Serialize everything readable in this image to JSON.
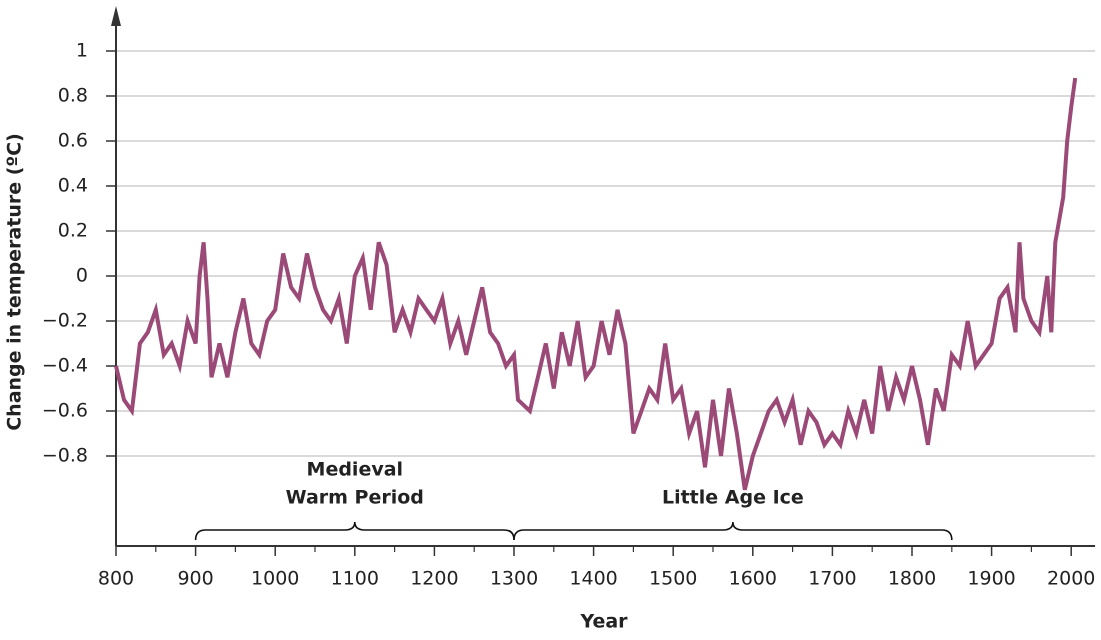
{
  "chart_data": {
    "type": "line",
    "x_label": "Year",
    "y_label": "Change in temperature (ºC)",
    "xlim": [
      800,
      2030
    ],
    "ylim": [
      -1.2,
      1.2
    ],
    "xticks": [
      800,
      900,
      1000,
      1100,
      1200,
      1300,
      1400,
      1500,
      1600,
      1700,
      1800,
      1900,
      2000
    ],
    "xminorticks": [
      850,
      950,
      1050,
      1150,
      1250,
      1350,
      1450,
      1550,
      1650,
      1750,
      1850,
      1950
    ],
    "yticks": [
      {
        "value": -0.8,
        "label": "−0.8"
      },
      {
        "value": -0.6,
        "label": "−0.6"
      },
      {
        "value": -0.4,
        "label": "−0.4"
      },
      {
        "value": -0.2,
        "label": "−0.2"
      },
      0,
      0.2,
      0.4,
      0.6,
      0.8,
      1
    ],
    "grid": true,
    "color": "#9b4a78",
    "x": [
      800,
      810,
      820,
      830,
      840,
      850,
      860,
      870,
      880,
      890,
      900,
      905,
      910,
      915,
      920,
      930,
      940,
      950,
      960,
      970,
      980,
      990,
      1000,
      1010,
      1020,
      1030,
      1040,
      1050,
      1060,
      1070,
      1080,
      1090,
      1100,
      1110,
      1120,
      1130,
      1140,
      1150,
      1160,
      1170,
      1180,
      1190,
      1200,
      1210,
      1220,
      1230,
      1240,
      1250,
      1260,
      1270,
      1280,
      1290,
      1300,
      1305,
      1320,
      1330,
      1340,
      1350,
      1360,
      1370,
      1380,
      1390,
      1400,
      1410,
      1420,
      1430,
      1440,
      1450,
      1460,
      1470,
      1480,
      1490,
      1500,
      1510,
      1520,
      1530,
      1540,
      1550,
      1560,
      1570,
      1580,
      1590,
      1600,
      1610,
      1620,
      1630,
      1640,
      1650,
      1660,
      1670,
      1680,
      1690,
      1700,
      1710,
      1720,
      1730,
      1740,
      1750,
      1760,
      1770,
      1780,
      1790,
      1800,
      1810,
      1820,
      1830,
      1840,
      1850,
      1860,
      1870,
      1880,
      1890,
      1900,
      1910,
      1920,
      1930,
      1935,
      1940,
      1950,
      1960,
      1970,
      1975,
      1980,
      1990,
      1995,
      2000,
      2005
    ],
    "values": [
      -0.4,
      -0.55,
      -0.6,
      -0.3,
      -0.25,
      -0.15,
      -0.35,
      -0.3,
      -0.4,
      -0.2,
      -0.3,
      0.0,
      0.15,
      -0.1,
      -0.45,
      -0.3,
      -0.45,
      -0.25,
      -0.1,
      -0.3,
      -0.35,
      -0.2,
      -0.15,
      0.1,
      -0.05,
      -0.1,
      0.1,
      -0.05,
      -0.15,
      -0.2,
      -0.1,
      -0.3,
      0.0,
      0.08,
      -0.15,
      0.15,
      0.05,
      -0.25,
      -0.15,
      -0.25,
      -0.1,
      -0.15,
      -0.2,
      -0.1,
      -0.3,
      -0.2,
      -0.35,
      -0.2,
      -0.05,
      -0.25,
      -0.3,
      -0.4,
      -0.35,
      -0.55,
      -0.6,
      -0.45,
      -0.3,
      -0.5,
      -0.25,
      -0.4,
      -0.2,
      -0.45,
      -0.4,
      -0.2,
      -0.35,
      -0.15,
      -0.3,
      -0.7,
      -0.6,
      -0.5,
      -0.55,
      -0.3,
      -0.55,
      -0.5,
      -0.7,
      -0.6,
      -0.85,
      -0.55,
      -0.8,
      -0.5,
      -0.7,
      -0.95,
      -0.8,
      -0.7,
      -0.6,
      -0.55,
      -0.65,
      -0.55,
      -0.75,
      -0.6,
      -0.65,
      -0.75,
      -0.7,
      -0.75,
      -0.6,
      -0.7,
      -0.55,
      -0.7,
      -0.4,
      -0.6,
      -0.45,
      -0.55,
      -0.4,
      -0.55,
      -0.75,
      -0.5,
      -0.6,
      -0.35,
      -0.4,
      -0.2,
      -0.4,
      -0.35,
      -0.3,
      -0.1,
      -0.05,
      -0.25,
      0.15,
      -0.1,
      -0.2,
      -0.25,
      0.0,
      -0.25,
      0.15,
      0.35,
      0.6,
      0.75,
      0.88
    ],
    "annotations": [
      {
        "lines": [
          "Medieval",
          "Warm Period"
        ],
        "x_range": [
          900,
          1300
        ]
      },
      {
        "lines": [
          "Little Age Ice"
        ],
        "x_range": [
          1300,
          1850
        ]
      }
    ]
  }
}
